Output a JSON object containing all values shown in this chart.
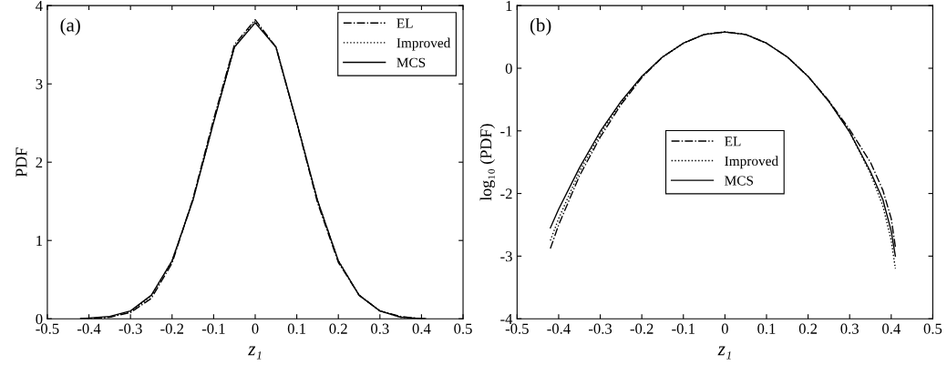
{
  "chart_data": [
    {
      "type": "line",
      "xlabel": "z₁",
      "ylabel": "PDF",
      "annotations": [
        "(a)"
      ],
      "legend": "top right",
      "grid": false,
      "marker": "none",
      "x": [
        -0.42,
        -0.4,
        -0.35,
        -0.3,
        -0.25,
        -0.2,
        -0.15,
        -0.1,
        -0.05,
        0,
        0.05,
        0.1,
        0.15,
        0.2,
        0.25,
        0.3,
        0.35,
        0.38,
        0.4,
        0.41
      ],
      "xlim": [
        -0.5,
        0.5
      ],
      "xticks": [
        -0.5,
        -0.4,
        -0.3,
        -0.2,
        -0.1,
        0,
        0.1,
        0.2,
        0.3,
        0.4,
        0.5
      ],
      "ylim": [
        0,
        4
      ],
      "yticks": [
        0,
        1,
        2,
        3,
        4
      ],
      "series": [
        {
          "name": "EL",
          "color": "#000000",
          "line_style": "dashdot",
          "values": [
            0.0,
            0.0,
            0.02,
            0.08,
            0.26,
            0.71,
            1.53,
            2.55,
            3.5,
            3.82,
            3.47,
            2.5,
            1.48,
            0.72,
            0.3,
            0.1,
            0.03,
            0.01,
            0.0,
            0.0
          ]
        },
        {
          "name": "Improved",
          "color": "#000000",
          "line_style": "dotted",
          "values": [
            0.0,
            0.0,
            0.02,
            0.09,
            0.29,
            0.74,
            1.51,
            2.51,
            3.47,
            3.8,
            3.47,
            2.51,
            1.51,
            0.74,
            0.3,
            0.1,
            0.02,
            0.01,
            0.0,
            0.0
          ]
        },
        {
          "name": "MCS",
          "color": "#000000",
          "line_style": "solid",
          "values": [
            0.0,
            0.01,
            0.03,
            0.1,
            0.3,
            0.74,
            1.51,
            2.51,
            3.47,
            3.78,
            3.47,
            2.51,
            1.51,
            0.74,
            0.3,
            0.1,
            0.02,
            0.01,
            0.0,
            0.0
          ]
        }
      ]
    },
    {
      "type": "line",
      "xlabel": "z₁",
      "ylabel": "log₁₀ (PDF)",
      "annotations": [
        "(b)"
      ],
      "legend": "center",
      "grid": false,
      "marker": "none",
      "x": [
        -0.42,
        -0.4,
        -0.35,
        -0.3,
        -0.25,
        -0.2,
        -0.15,
        -0.1,
        -0.05,
        0,
        0.05,
        0.1,
        0.15,
        0.2,
        0.25,
        0.3,
        0.35,
        0.38,
        0.4,
        0.41
      ],
      "xlim": [
        -0.5,
        0.5
      ],
      "xticks": [
        -0.5,
        -0.4,
        -0.3,
        -0.2,
        -0.1,
        0,
        0.1,
        0.2,
        0.3,
        0.4,
        0.5
      ],
      "ylim": [
        -4,
        1
      ],
      "yticks": [
        -4,
        -3,
        -2,
        -1,
        0,
        1
      ],
      "series": [
        {
          "name": "EL",
          "color": "#000000",
          "line_style": "dashdot",
          "values": [
            -2.88,
            -2.5,
            -1.72,
            -1.1,
            -0.58,
            -0.15,
            0.18,
            0.4,
            0.54,
            0.58,
            0.54,
            0.4,
            0.18,
            -0.13,
            -0.52,
            -0.98,
            -1.5,
            -1.95,
            -2.4,
            -2.85
          ]
        },
        {
          "name": "Improved",
          "color": "#000000",
          "line_style": "dotted",
          "values": [
            -2.75,
            -2.4,
            -1.65,
            -1.05,
            -0.55,
            -0.13,
            0.18,
            0.4,
            0.54,
            0.58,
            0.54,
            0.4,
            0.18,
            -0.13,
            -0.53,
            -1.02,
            -1.68,
            -2.2,
            -2.75,
            -3.2
          ]
        },
        {
          "name": "MCS",
          "color": "#000000",
          "line_style": "solid",
          "values": [
            -2.55,
            -2.25,
            -1.59,
            -1.01,
            -0.53,
            -0.13,
            0.18,
            0.4,
            0.54,
            0.58,
            0.54,
            0.4,
            0.18,
            -0.13,
            -0.53,
            -1.02,
            -1.65,
            -2.1,
            -2.6,
            -3.0
          ]
        }
      ]
    }
  ]
}
